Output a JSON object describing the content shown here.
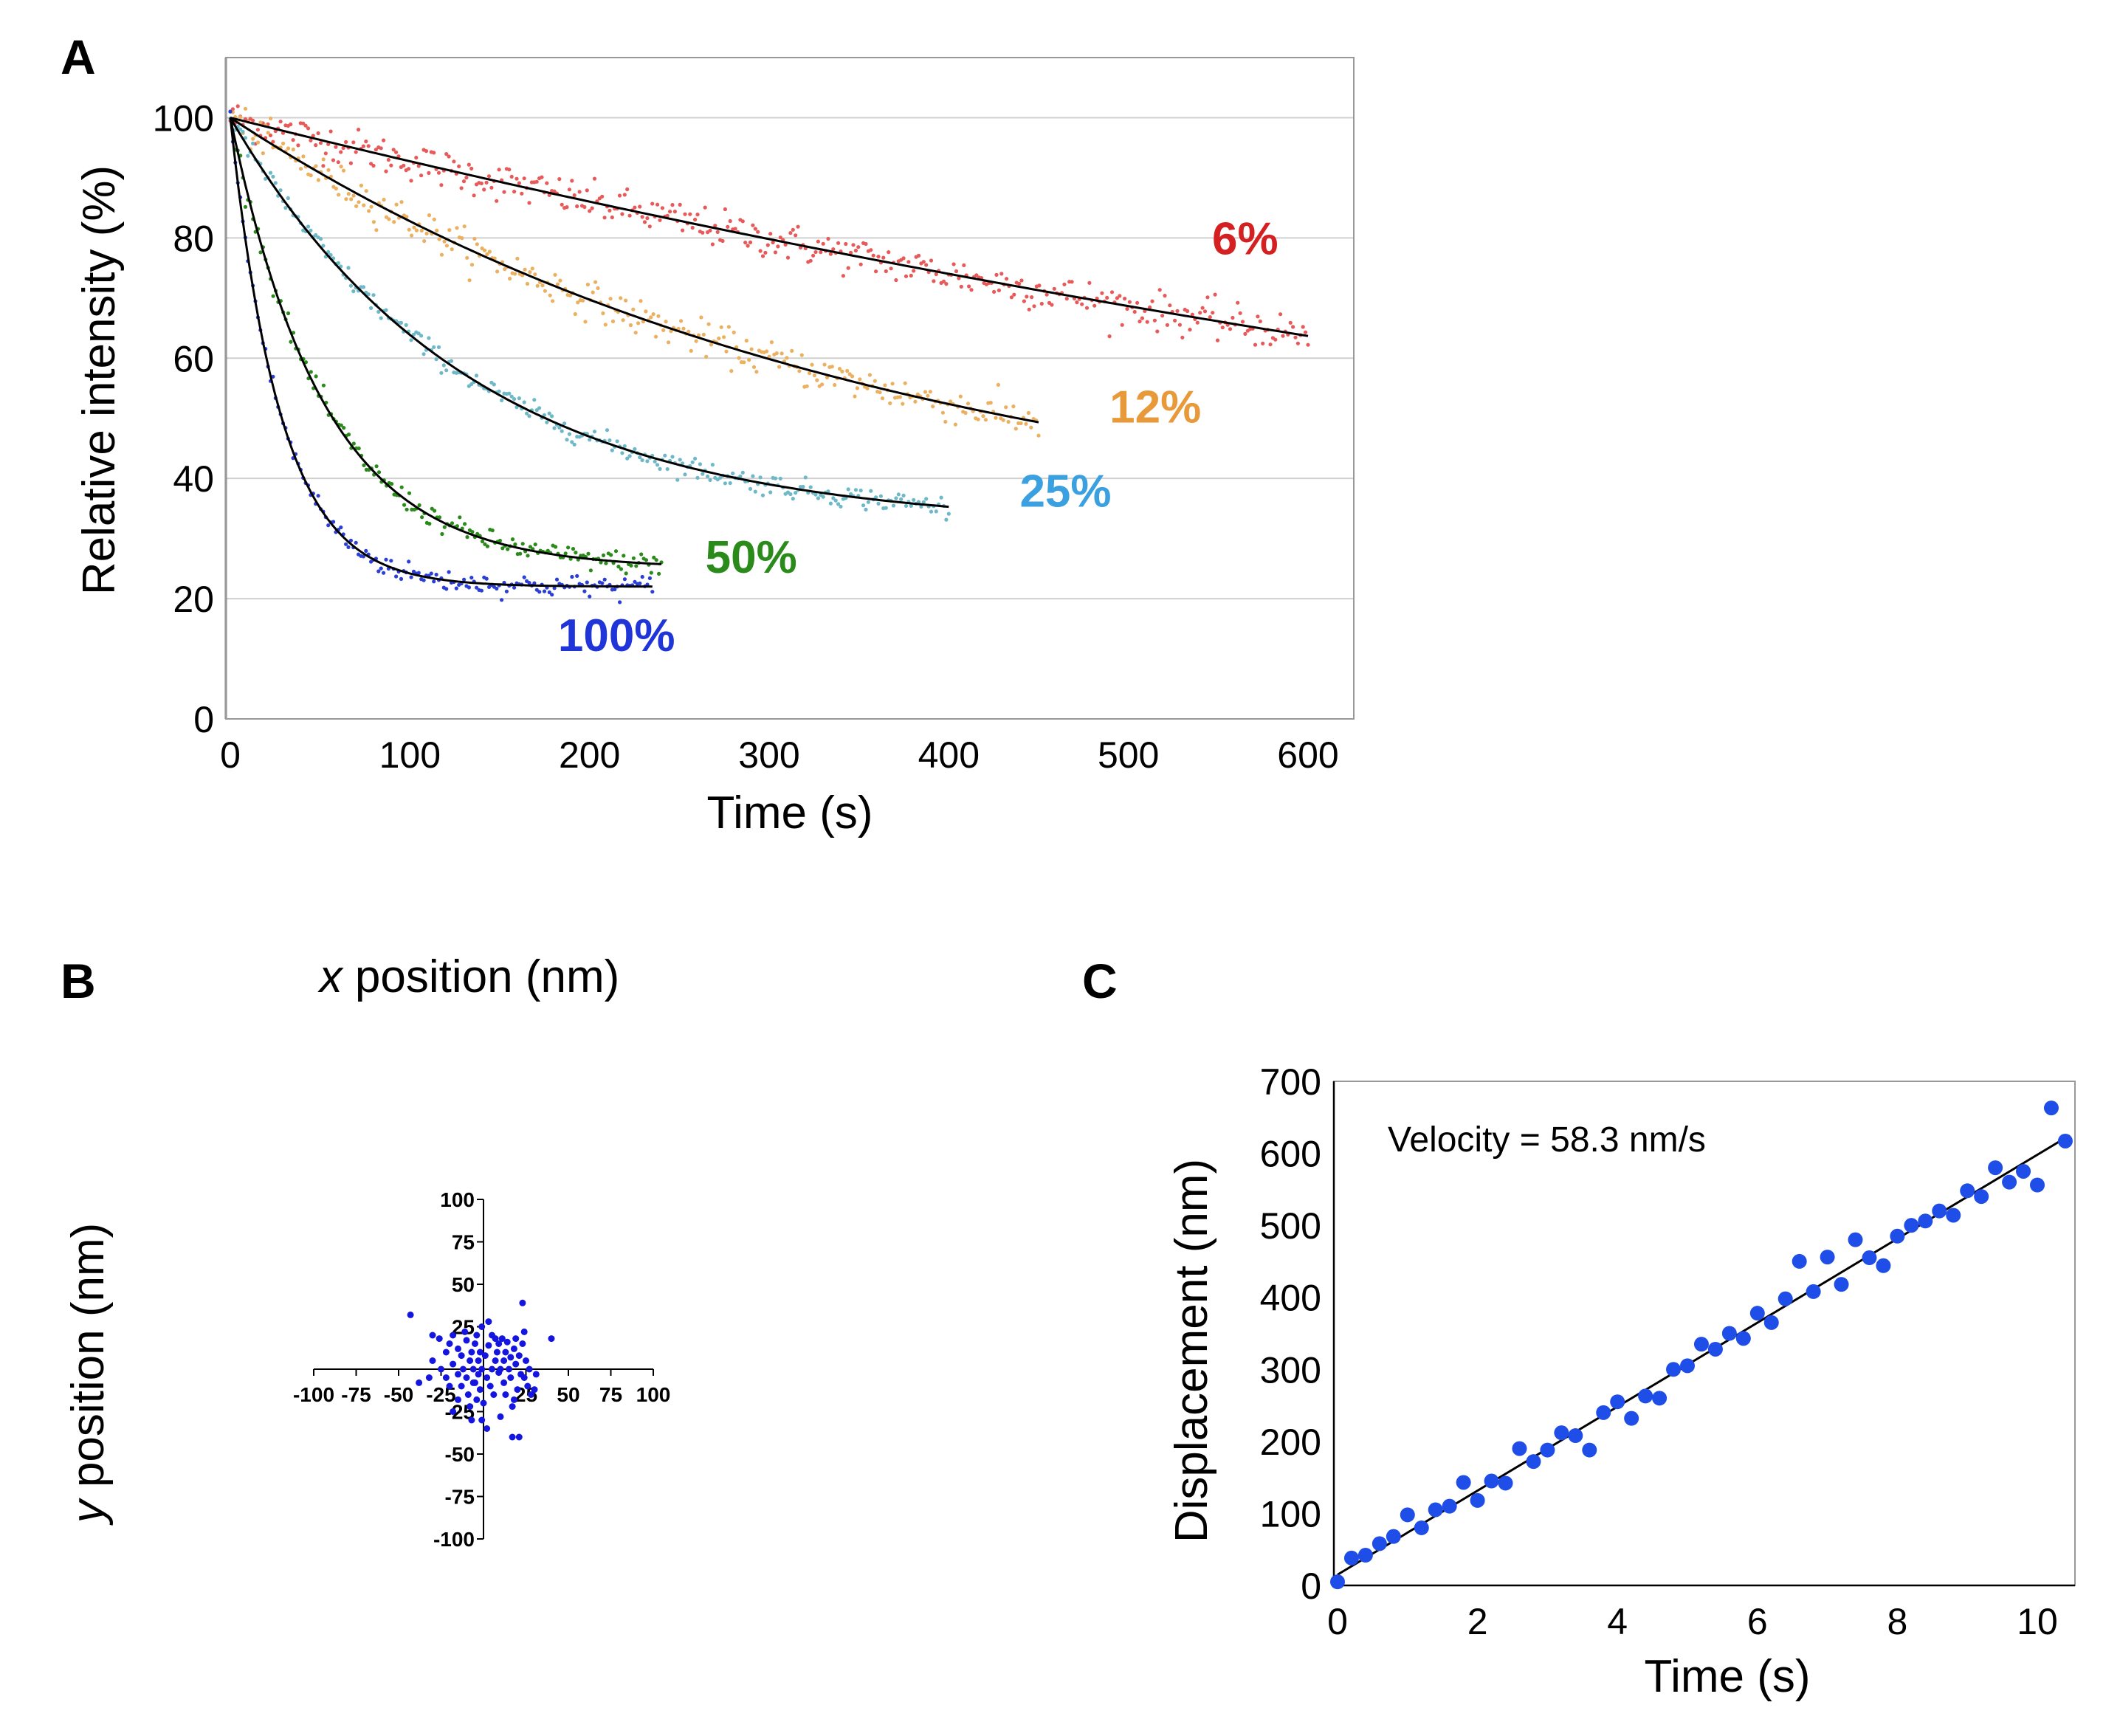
{
  "chart_data": [
    {
      "panel": "A",
      "type": "scatter",
      "xlabel": "Time (s)",
      "ylabel": "Relative intensity (%)",
      "xlim": [
        0,
        630
      ],
      "ylim": [
        0,
        110
      ],
      "xticks": [
        0,
        100,
        200,
        300,
        400,
        500,
        600
      ],
      "yticks": [
        0,
        20,
        40,
        60,
        80,
        100
      ],
      "grid": true,
      "series": [
        {
          "name": "6%",
          "color": "#d42020",
          "end_time": 600,
          "plateau": 0,
          "tau": 1330,
          "label_pos": [
            565,
            80
          ]
        },
        {
          "name": "12%",
          "color": "#e89a3a",
          "end_time": 450,
          "plateau": 29,
          "tau": 360,
          "label_pos": [
            515,
            52
          ]
        },
        {
          "name": "25%",
          "color": "#3aa0e0",
          "end_time": 400,
          "plateau": 32,
          "tau": 132,
          "label_pos": [
            465,
            38
          ]
        },
        {
          "name": "50%",
          "color": "#2a8a1a",
          "end_time": 240,
          "plateau": 25,
          "tau": 52,
          "label_pos": [
            290,
            27
          ]
        },
        {
          "name": "100%",
          "color": "#1f35d8",
          "end_time": 235,
          "plateau": 22,
          "tau": 28,
          "label_pos": [
            215,
            14
          ]
        }
      ],
      "point_colors": {
        "6%": "#e85a5a",
        "12%": "#ebb060",
        "25%": "#6fb8c8",
        "50%": "#2a8a1a",
        "100%": "#2b3fd6"
      }
    },
    {
      "panel": "B",
      "type": "scatter",
      "xlabel_italic": "x",
      "xlabel_rest": " position (nm)",
      "ylabel_italic": "y",
      "ylabel_rest": " position (nm)",
      "xlim": [
        -100,
        100
      ],
      "ylim": [
        -100,
        100
      ],
      "xticks": [
        -100,
        -75,
        -50,
        -25,
        25,
        50,
        75,
        100
      ],
      "yticks": [
        -100,
        -75,
        -50,
        -25,
        25,
        50,
        75,
        100
      ],
      "color": "#1515e0",
      "points": [
        [
          -43,
          32
        ],
        [
          -38,
          -8
        ],
        [
          -32,
          -5
        ],
        [
          -30,
          5
        ],
        [
          -30,
          20
        ],
        [
          -26,
          18
        ],
        [
          -25,
          0
        ],
        [
          -22,
          10
        ],
        [
          -22,
          -5
        ],
        [
          -20,
          15
        ],
        [
          -20,
          -10
        ],
        [
          -18,
          20
        ],
        [
          -18,
          3
        ],
        [
          -18,
          -25
        ],
        [
          -15,
          12
        ],
        [
          -15,
          -3
        ],
        [
          -15,
          -18
        ],
        [
          -13,
          8
        ],
        [
          -13,
          -10
        ],
        [
          -12,
          0
        ],
        [
          -11,
          22
        ],
        [
          -10,
          17
        ],
        [
          -10,
          -5
        ],
        [
          -9,
          -15
        ],
        [
          -8,
          5
        ],
        [
          -8,
          -22
        ],
        [
          -7,
          10
        ],
        [
          -7,
          -30
        ],
        [
          -6,
          0
        ],
        [
          -5,
          15
        ],
        [
          -5,
          -8
        ],
        [
          -4,
          20
        ],
        [
          -4,
          -18
        ],
        [
          -3,
          5
        ],
        [
          -3,
          -3
        ],
        [
          -2,
          10
        ],
        [
          -2,
          -12
        ],
        [
          -1,
          25
        ],
        [
          -1,
          0
        ],
        [
          0,
          -20
        ],
        [
          1,
          8
        ],
        [
          2,
          -5
        ],
        [
          2,
          -35
        ],
        [
          3,
          14
        ],
        [
          3,
          28
        ],
        [
          4,
          -10
        ],
        [
          5,
          20
        ],
        [
          5,
          0
        ],
        [
          6,
          -15
        ],
        [
          7,
          18
        ],
        [
          7,
          5
        ],
        [
          8,
          10
        ],
        [
          9,
          15
        ],
        [
          9,
          -2
        ],
        [
          10,
          0
        ],
        [
          10,
          -28
        ],
        [
          11,
          18
        ],
        [
          12,
          5
        ],
        [
          12,
          -8
        ],
        [
          13,
          10
        ],
        [
          13,
          -15
        ],
        [
          14,
          16
        ],
        [
          15,
          0
        ],
        [
          16,
          7
        ],
        [
          16,
          -5
        ],
        [
          17,
          -22
        ],
        [
          17,
          -40
        ],
        [
          18,
          12
        ],
        [
          18,
          -18
        ],
        [
          19,
          18
        ],
        [
          19,
          3
        ],
        [
          20,
          -12
        ],
        [
          21,
          8
        ],
        [
          21,
          -40
        ],
        [
          22,
          -3
        ],
        [
          23,
          15
        ],
        [
          23,
          39
        ],
        [
          24,
          22
        ],
        [
          24,
          -5
        ],
        [
          25,
          5
        ],
        [
          26,
          -10
        ],
        [
          27,
          0
        ],
        [
          28,
          -15
        ],
        [
          30,
          -12
        ],
        [
          31,
          -3
        ],
        [
          40,
          18
        ],
        [
          -6,
          -8
        ],
        [
          -1,
          -30
        ]
      ]
    },
    {
      "panel": "C",
      "type": "scatter",
      "xlabel": "Time (s)",
      "ylabel": "Displacement (nm)",
      "xlim": [
        0,
        10.6
      ],
      "ylim": [
        0,
        700
      ],
      "xticks": [
        0,
        2,
        4,
        6,
        8,
        10
      ],
      "yticks": [
        0,
        100,
        200,
        300,
        400,
        500,
        600,
        700
      ],
      "annotation": "Velocity = 58.3 nm/s",
      "fit": {
        "slope": 58.3,
        "intercept": 15,
        "x_range": [
          0,
          10.4
        ]
      },
      "color": "#1f4de8",
      "points": [
        [
          0,
          5
        ],
        [
          0.2,
          38
        ],
        [
          0.4,
          42
        ],
        [
          0.6,
          58
        ],
        [
          0.8,
          68
        ],
        [
          1.0,
          98
        ],
        [
          1.2,
          80
        ],
        [
          1.4,
          105
        ],
        [
          1.6,
          110
        ],
        [
          1.8,
          143
        ],
        [
          2.0,
          118
        ],
        [
          2.2,
          145
        ],
        [
          2.4,
          142
        ],
        [
          2.6,
          190
        ],
        [
          2.8,
          172
        ],
        [
          3.0,
          188
        ],
        [
          3.2,
          212
        ],
        [
          3.4,
          208
        ],
        [
          3.6,
          188
        ],
        [
          3.8,
          240
        ],
        [
          4.0,
          255
        ],
        [
          4.2,
          232
        ],
        [
          4.4,
          263
        ],
        [
          4.6,
          260
        ],
        [
          4.8,
          300
        ],
        [
          5.0,
          305
        ],
        [
          5.2,
          335
        ],
        [
          5.4,
          328
        ],
        [
          5.6,
          350
        ],
        [
          5.8,
          343
        ],
        [
          6.0,
          378
        ],
        [
          6.2,
          365
        ],
        [
          6.4,
          398
        ],
        [
          6.6,
          450
        ],
        [
          6.8,
          408
        ],
        [
          7.0,
          456
        ],
        [
          7.2,
          418
        ],
        [
          7.4,
          480
        ],
        [
          7.6,
          455
        ],
        [
          7.8,
          444
        ],
        [
          8.0,
          485
        ],
        [
          8.2,
          500
        ],
        [
          8.4,
          506
        ],
        [
          8.6,
          520
        ],
        [
          8.8,
          514
        ],
        [
          9.0,
          548
        ],
        [
          9.2,
          540
        ],
        [
          9.4,
          580
        ],
        [
          9.6,
          560
        ],
        [
          9.8,
          575
        ],
        [
          10.0,
          556
        ],
        [
          10.2,
          663
        ],
        [
          10.4,
          617
        ]
      ]
    }
  ]
}
